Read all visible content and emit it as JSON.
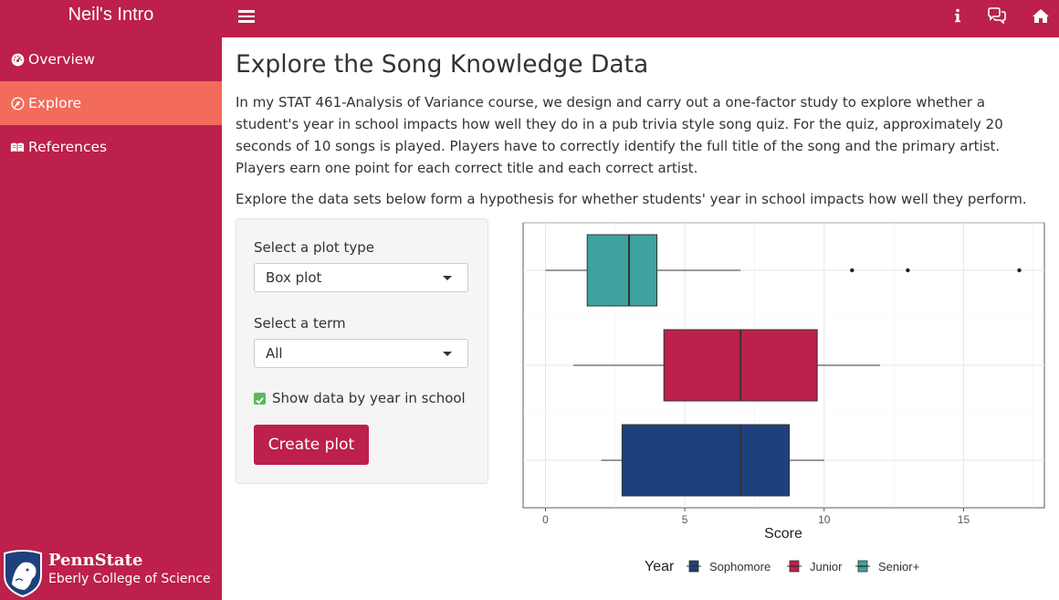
{
  "app": {
    "title": "Neil's Intro"
  },
  "topbar": {
    "icons": [
      "info-icon",
      "comments-icon",
      "home-icon"
    ]
  },
  "sidebar": {
    "items": [
      {
        "label": "Overview",
        "icon": "dashboard-icon",
        "active": false
      },
      {
        "label": "Explore",
        "icon": "wpexplorer-icon",
        "active": true
      },
      {
        "label": "References",
        "icon": "leanpub-icon",
        "active": false
      }
    ],
    "footer": {
      "brand": "PennState",
      "college": "Eberly College of Science"
    }
  },
  "main": {
    "title": "Explore the Song Knowledge Data",
    "paragraph1": "In my STAT 461-Analysis of Variance course, we design and carry out a one-factor study to explore whether a student's year in school impacts how well they do in a pub trivia style song quiz. For the quiz, approximately 20 seconds of 10 songs is played. Players have to correctly identify the full title of the song and the primary artist. Players earn one point for each correct title and each correct artist.",
    "paragraph2": "Explore the data sets below form a hypothesis for whether students' year in school impacts how well they perform."
  },
  "controls": {
    "plot_type_label": "Select a plot type",
    "plot_type_value": "Box plot",
    "term_label": "Select a term",
    "term_value": "All",
    "checkbox_label": "Show data by year in school",
    "checkbox_checked": true,
    "button_label": "Create plot"
  },
  "colors": {
    "brand": "#bc204b",
    "active": "#f26b5b",
    "sophomore": "#1e407c",
    "junior": "#bc204b",
    "senior": "#3ea39e"
  },
  "chart_data": {
    "type": "boxplot",
    "orientation": "horizontal",
    "xlabel": "Score",
    "xlim": [
      -0.8,
      17.9
    ],
    "xticks": [
      0,
      5,
      10,
      15
    ],
    "grid": true,
    "legend": {
      "title": "Year",
      "position": "bottom",
      "entries": [
        "Sophomore",
        "Junior",
        "Senior+"
      ]
    },
    "series": [
      {
        "name": "Sophomore",
        "color": "#1e407c",
        "whisker_low": 2,
        "q1": 2.75,
        "median": 7,
        "q3": 8.75,
        "whisker_high": 10,
        "outliers": []
      },
      {
        "name": "Junior",
        "color": "#bc204b",
        "whisker_low": 1,
        "q1": 4.25,
        "median": 7,
        "q3": 9.75,
        "whisker_high": 12,
        "outliers": []
      },
      {
        "name": "Senior+",
        "color": "#3ea39e",
        "whisker_low": 0,
        "q1": 1.5,
        "median": 3,
        "q3": 4,
        "whisker_high": 7,
        "outliers": [
          11,
          13,
          17
        ]
      }
    ]
  }
}
